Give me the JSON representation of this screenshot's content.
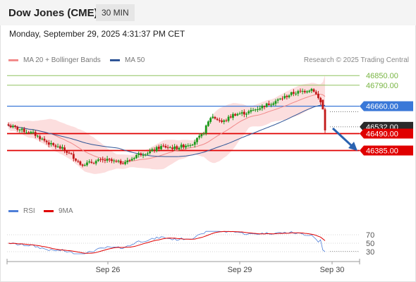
{
  "header": {
    "title": "Dow Jones (CME)",
    "interval": "30 MIN"
  },
  "timestamp": "Monday, September 29, 2025 4:31:37 PM CET",
  "legend": [
    {
      "label": "MA 20 + Bollinger Bands",
      "color": "#f28b8b"
    },
    {
      "label": "MA 50",
      "color": "#2f5597"
    }
  ],
  "copyright": "Research © 2025 Trading Central",
  "rsi_legend": [
    {
      "label": "RSI",
      "color": "#4f7fd8"
    },
    {
      "label": "9MA",
      "color": "#e00000"
    }
  ],
  "colors": {
    "up": "#1a9a1a",
    "down": "#c21818",
    "target": "#e00000",
    "pivot": "#3a78d8",
    "resistance": "#8fc25f",
    "band": "#fbd3d3",
    "ma20": "#f08a8a",
    "ma50": "#2f5597",
    "arrow": "#2a62b0"
  },
  "chart_data": {
    "type": "candlestick",
    "ylim": [
      46200,
      46900
    ],
    "x_ticks": [
      "Sep 26",
      "Sep 29",
      "Sep 30"
    ],
    "levels": [
      {
        "value": 46850.0,
        "label": "46850.00",
        "kind": "resistance"
      },
      {
        "value": 46790.0,
        "label": "46790.00",
        "kind": "resistance"
      },
      {
        "value": 46660.0,
        "label": "46660.00",
        "kind": "pivot"
      },
      {
        "value": 46532.0,
        "label": "46532.00",
        "kind": "last"
      },
      {
        "value": 46490.0,
        "label": "46490.00",
        "kind": "support"
      },
      {
        "value": 46385.0,
        "label": "46385.00",
        "kind": "support"
      }
    ],
    "indicator": {
      "name": "RSI",
      "ticks": [
        70,
        50,
        30
      ],
      "ylim": [
        20,
        80
      ]
    }
  }
}
